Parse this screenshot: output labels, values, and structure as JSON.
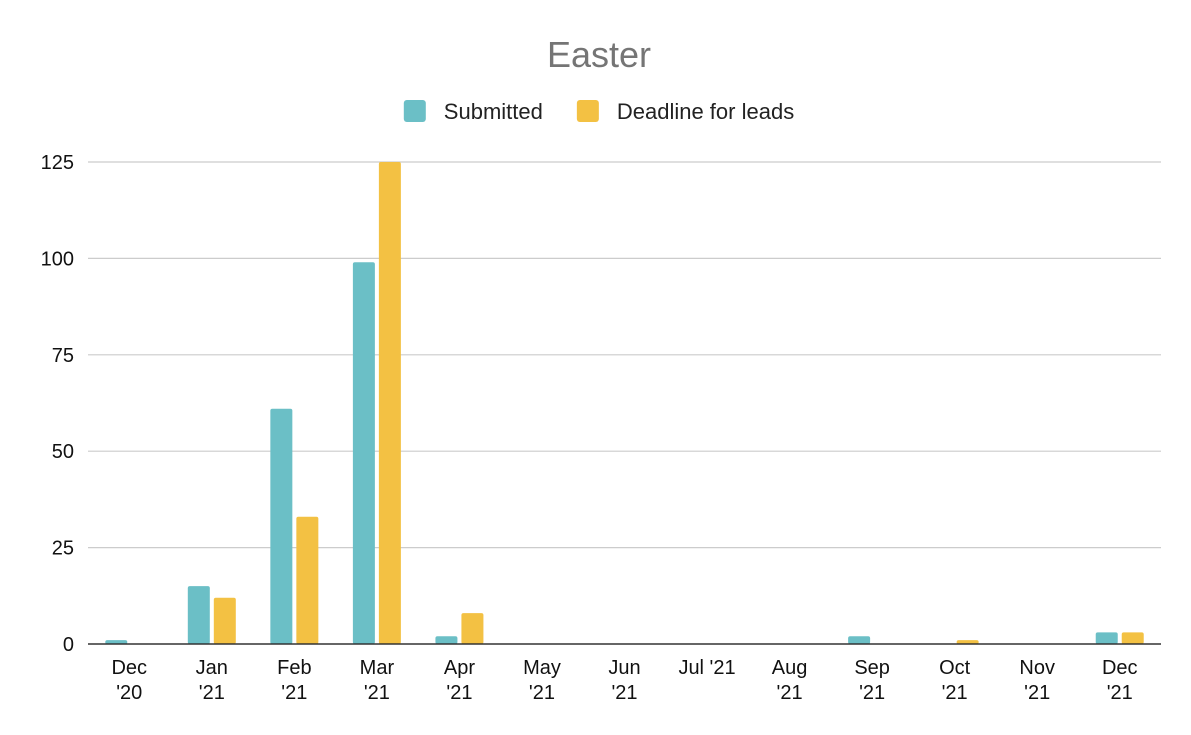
{
  "chart_data": {
    "type": "bar",
    "title": "Easter",
    "xlabel": "",
    "ylabel": "",
    "ylim": [
      0,
      125
    ],
    "yticks": [
      0,
      25,
      50,
      75,
      100,
      125
    ],
    "grid": true,
    "legend_position": "top",
    "categories": [
      [
        "Dec",
        "'20"
      ],
      [
        "Jan",
        "'21"
      ],
      [
        "Feb",
        "'21"
      ],
      [
        "Mar",
        "'21"
      ],
      [
        "Apr",
        "'21"
      ],
      [
        "May",
        "'21"
      ],
      [
        "Jun",
        "'21"
      ],
      [
        "Jul '21"
      ],
      [
        "Aug",
        "'21"
      ],
      [
        "Sep",
        "'21"
      ],
      [
        "Oct",
        "'21"
      ],
      [
        "Nov",
        "'21"
      ],
      [
        "Dec",
        "'21"
      ]
    ],
    "series": [
      {
        "name": "Submitted",
        "color": "#6bbfc6",
        "values": [
          1,
          15,
          61,
          99,
          2,
          0,
          0,
          0,
          0,
          2,
          0,
          0,
          3
        ]
      },
      {
        "name": "Deadline for leads",
        "color": "#f3c143",
        "values": [
          0,
          12,
          33,
          125,
          8,
          0,
          0,
          0,
          0,
          0,
          1,
          0,
          3
        ]
      }
    ]
  }
}
